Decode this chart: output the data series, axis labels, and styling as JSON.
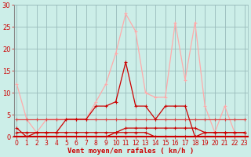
{
  "x": [
    0,
    1,
    2,
    3,
    4,
    5,
    6,
    7,
    8,
    9,
    10,
    11,
    12,
    13,
    14,
    15,
    16,
    17,
    18,
    19,
    20,
    21,
    22,
    23
  ],
  "line_rafales": [
    12,
    4,
    1,
    4,
    4,
    4,
    4,
    4,
    8,
    12,
    19,
    28,
    24,
    10,
    9,
    9,
    26,
    13,
    26,
    7,
    1,
    7,
    1,
    1
  ],
  "line_moyen": [
    2,
    0,
    1,
    1,
    1,
    4,
    4,
    4,
    7,
    7,
    8,
    17,
    7,
    7,
    4,
    7,
    7,
    7,
    0,
    1,
    1,
    1,
    1,
    1
  ],
  "line_flat1": [
    4,
    4,
    4,
    4,
    4,
    4,
    4,
    4,
    4,
    4,
    4,
    4,
    4,
    4,
    4,
    4,
    4,
    4,
    4,
    4,
    4,
    4,
    4,
    4
  ],
  "line_flat2": [
    1,
    1,
    1,
    1,
    1,
    1,
    1,
    1,
    1,
    1,
    1,
    2,
    2,
    2,
    2,
    2,
    2,
    2,
    2,
    1,
    1,
    1,
    1,
    1
  ],
  "line_flat3": [
    0,
    0,
    0,
    0,
    0,
    0,
    0,
    0,
    0,
    0,
    1,
    1,
    1,
    1,
    0,
    0,
    0,
    0,
    0,
    0,
    0,
    0,
    0,
    0
  ],
  "bg_color": "#cceee8",
  "color_rafales": "#ffaaaa",
  "color_moyen": "#cc0000",
  "color_flat1": "#dd4444",
  "color_flat2": "#cc0000",
  "color_flat3": "#cc0000",
  "grid_color": "#99bbbb",
  "axis_color": "#cc0000",
  "xlabel": "Vent moyen/en rafales ( kn/h )",
  "ylim": [
    0,
    30
  ],
  "yticks": [
    0,
    5,
    10,
    15,
    20,
    25,
    30
  ],
  "xticks": [
    0,
    1,
    2,
    3,
    4,
    5,
    6,
    7,
    8,
    9,
    10,
    11,
    12,
    13,
    14,
    15,
    16,
    17,
    18,
    19,
    20,
    21,
    22,
    23
  ]
}
